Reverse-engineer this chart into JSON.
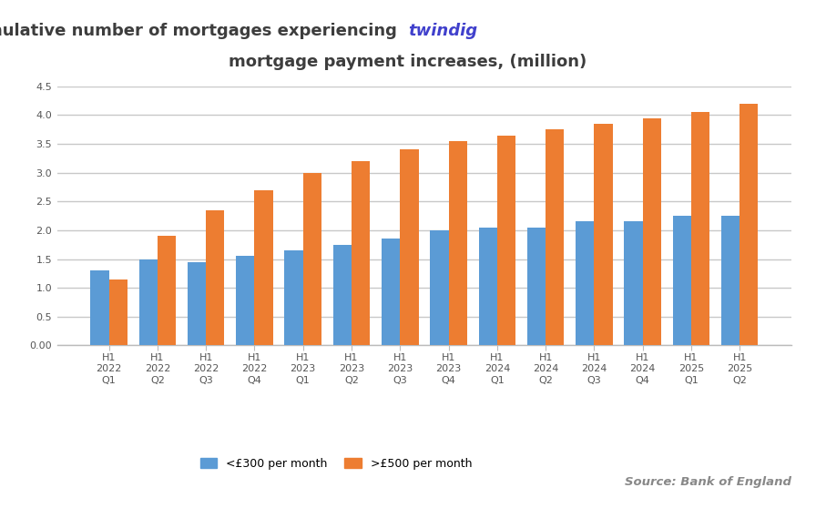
{
  "title_line1": "Cumulative number of mortgages experiencing",
  "title_line2": "mortgage payment increases, (million)",
  "title_color": "#3d3d3d",
  "twindig_text": "twindig",
  "twindig_color": "#4040cc",
  "categories": [
    "H1\n2022\nQ1",
    "H1\n2022\nQ2",
    "H1\n2022\nQ3",
    "H1\n2022\nQ4",
    "H1\n2023\nQ1",
    "H1\n2023\nQ2",
    "H1\n2023\nQ3",
    "H1\n2023\nQ4",
    "H1\n2024\nQ1",
    "H1\n2024\nQ2",
    "H1\n2024\nQ3",
    "H1\n2024\nQ4",
    "H1\n2025\nQ1",
    "H1\n2025\nQ2"
  ],
  "blue_values": [
    1.3,
    1.5,
    1.45,
    1.55,
    1.65,
    1.75,
    1.85,
    2.0,
    2.05,
    2.05,
    2.15,
    2.15,
    2.25,
    2.25
  ],
  "orange_values": [
    1.15,
    1.9,
    2.35,
    2.7,
    3.0,
    3.2,
    3.4,
    3.55,
    3.65,
    3.75,
    3.85,
    3.95,
    4.05,
    4.2
  ],
  "blue_color": "#5b9bd5",
  "orange_color": "#ed7d31",
  "ylim": [
    0,
    4.5
  ],
  "yticks": [
    0.0,
    0.5,
    1.0,
    1.5,
    2.0,
    2.5,
    3.0,
    3.5,
    4.0,
    4.5
  ],
  "ytick_labels": [
    "0.00",
    "0.5",
    "1.0",
    "1.5",
    "2.0",
    "2.5",
    "3.0",
    "3.5",
    "4.0",
    "4.5"
  ],
  "legend_blue": "<£300 per month",
  "legend_orange": ">£500 per month",
  "source_text": "Source: Bank of England",
  "bg_color": "#ffffff",
  "grid_color": "#c8c8c8",
  "title_fontsize": 13,
  "tick_label_fontsize": 8,
  "legend_fontsize": 9
}
